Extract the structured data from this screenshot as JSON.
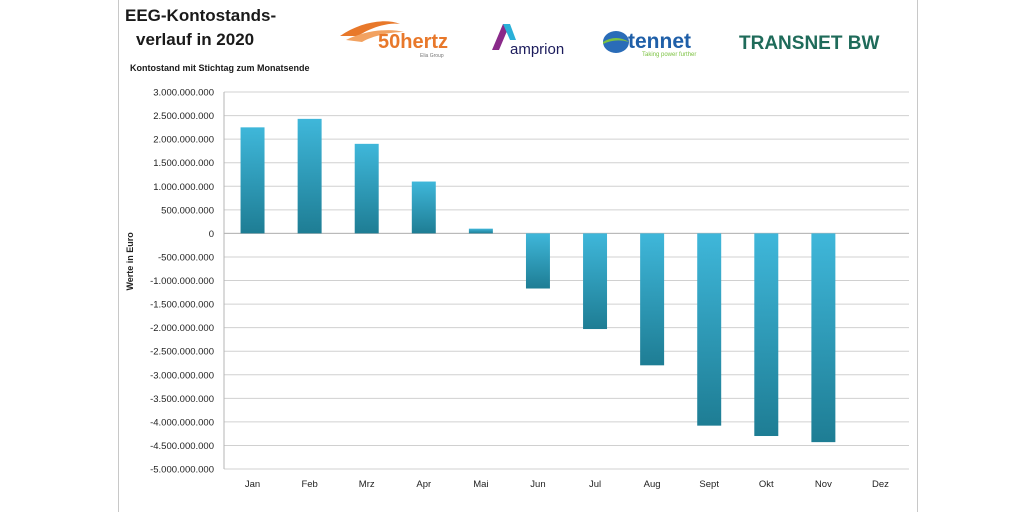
{
  "title_lines": [
    "EEG-Kontostands-",
    "verlauf in 2020"
  ],
  "logos": [
    {
      "name": "50hertz-logo",
      "text": "50hertz",
      "subtext": "Elia Group",
      "color": "#e8782a"
    },
    {
      "name": "amprion-logo",
      "text": "amprion",
      "color": "#1c1c5c"
    },
    {
      "name": "tennet-logo",
      "text": "tennet",
      "subtext": "Taking power further",
      "color": "#1f5fa8"
    },
    {
      "name": "transnet-bw-logo",
      "text": "TRANSNET BW",
      "color": "#1f6b5a"
    }
  ],
  "colors": {
    "bar_top": "#3fb7da",
    "bar_bottom": "#1e7d94",
    "grid": "#d0d0d0",
    "axis_text": "#222222"
  },
  "chart_data": {
    "type": "bar",
    "title": "EEG-Kontostands- verlauf in 2020",
    "subtitle": "Kontostand mit Stichtag zum Monatsende",
    "xlabel": "",
    "ylabel": "Werte in Euro",
    "ylim": [
      -5000000000,
      3000000000
    ],
    "ytick_step": 500000000,
    "yticks": [
      "3.000.000.000",
      "2.500.000.000",
      "2.000.000.000",
      "1.500.000.000",
      "1.000.000.000",
      "500.000.000",
      "0",
      "-500.000.000",
      "-1.000.000.000",
      "-1.500.000.000",
      "-2.000.000.000",
      "-2.500.000.000",
      "-3.000.000.000",
      "-3.500.000.000",
      "-4.000.000.000",
      "-4.500.000.000",
      "-5.000.000.000"
    ],
    "categories": [
      "Jan",
      "Feb",
      "Mrz",
      "Apr",
      "Mai",
      "Jun",
      "Jul",
      "Aug",
      "Sept",
      "Okt",
      "Nov",
      "Dez"
    ],
    "values": [
      2250000000,
      2430000000,
      1900000000,
      1100000000,
      100000000,
      -1170000000,
      -2030000000,
      -2800000000,
      -4080000000,
      -4300000000,
      -4430000000,
      null
    ],
    "grid": true,
    "legend": "none"
  }
}
